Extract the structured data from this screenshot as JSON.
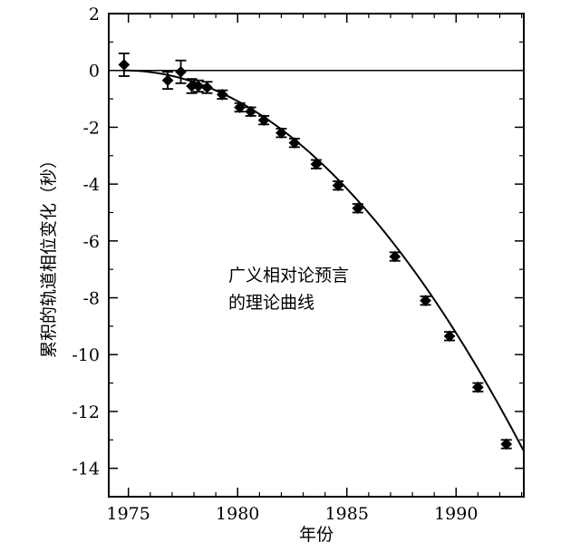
{
  "chart_data": {
    "type": "scatter",
    "title": "",
    "xlabel": "年份",
    "ylabel": "累积的轨道相位变化（秒）",
    "xlim": [
      1974.1,
      1993.1
    ],
    "ylim": [
      -15,
      2
    ],
    "x_ticks": [
      1975,
      1980,
      1985,
      1990
    ],
    "x_tick_labels": [
      "1975",
      "1980",
      "1985",
      "1990"
    ],
    "y_ticks": [
      2,
      0,
      -2,
      -4,
      -6,
      -8,
      -10,
      -12,
      -14
    ],
    "y_tick_labels": [
      "2",
      "0",
      "-2",
      "-4",
      "-6",
      "-8",
      "-10",
      "-12",
      "-14"
    ],
    "grid": false,
    "annotation": [
      "广义相对论预言",
      "的理论曲线"
    ],
    "reference_line": {
      "y": 0
    },
    "theory_curve": {
      "x0": 1974.8,
      "coefficient": -0.04,
      "x_end": 1993.1
    },
    "observed": [
      {
        "x": 1974.8,
        "y": 0.2,
        "err": 0.4
      },
      {
        "x": 1976.8,
        "y": -0.35,
        "err": 0.3
      },
      {
        "x": 1977.4,
        "y": -0.05,
        "err": 0.4
      },
      {
        "x": 1977.9,
        "y": -0.55,
        "err": 0.25
      },
      {
        "x": 1978.2,
        "y": -0.55,
        "err": 0.2
      },
      {
        "x": 1978.6,
        "y": -0.6,
        "err": 0.2
      },
      {
        "x": 1979.3,
        "y": -0.85,
        "err": 0.15
      },
      {
        "x": 1980.1,
        "y": -1.3,
        "err": 0.15
      },
      {
        "x": 1980.6,
        "y": -1.45,
        "err": 0.15
      },
      {
        "x": 1981.2,
        "y": -1.75,
        "err": 0.15
      },
      {
        "x": 1982.0,
        "y": -2.2,
        "err": 0.15
      },
      {
        "x": 1982.6,
        "y": -2.55,
        "err": 0.15
      },
      {
        "x": 1983.6,
        "y": -3.3,
        "err": 0.15
      },
      {
        "x": 1984.6,
        "y": -4.05,
        "err": 0.15
      },
      {
        "x": 1985.5,
        "y": -4.85,
        "err": 0.15
      },
      {
        "x": 1987.2,
        "y": -6.55,
        "err": 0.15
      },
      {
        "x": 1988.6,
        "y": -8.1,
        "err": 0.15
      },
      {
        "x": 1989.7,
        "y": -9.35,
        "err": 0.15
      },
      {
        "x": 1991.0,
        "y": -11.15,
        "err": 0.15
      },
      {
        "x": 1992.3,
        "y": -13.15,
        "err": 0.15
      }
    ]
  }
}
